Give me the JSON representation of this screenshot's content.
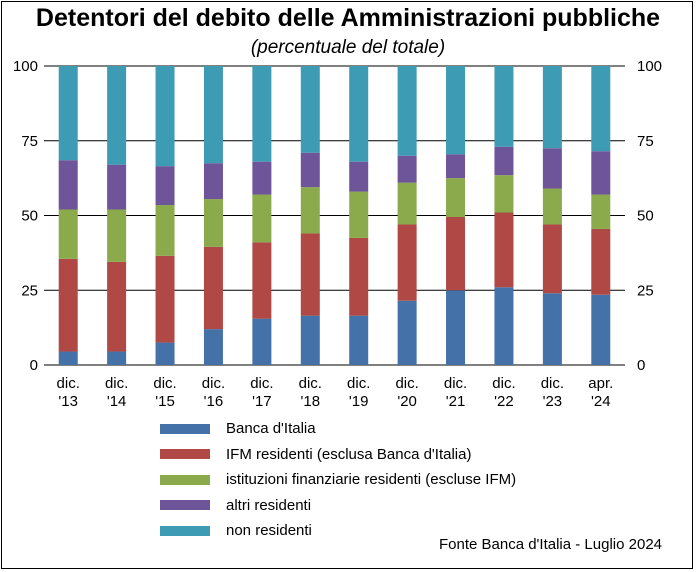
{
  "chart_data": {
    "type": "bar",
    "stacked": true,
    "title": "Detentori del debito delle Amministrazioni pubbliche",
    "subtitle": "(percentuale del totale)",
    "categories": [
      [
        "dic.",
        "'13"
      ],
      [
        "dic.",
        "'14"
      ],
      [
        "dic.",
        "'15"
      ],
      [
        "dic.",
        "'16"
      ],
      [
        "dic.",
        "'17"
      ],
      [
        "dic.",
        "'18"
      ],
      [
        "dic.",
        "'19"
      ],
      [
        "dic.",
        "'20"
      ],
      [
        "dic.",
        "'21"
      ],
      [
        "dic.",
        "'22"
      ],
      [
        "dic.",
        "'23"
      ],
      [
        "apr.",
        "'24"
      ]
    ],
    "ylim": [
      0,
      100
    ],
    "yticks": [
      0,
      25,
      50,
      75,
      100
    ],
    "grid": true,
    "series": [
      {
        "name": "Banca d'Italia",
        "color": "#4472A8",
        "values": [
          4.5,
          4.5,
          7.5,
          12,
          15.5,
          16.5,
          16.5,
          21.5,
          25,
          26,
          24,
          23.5
        ]
      },
      {
        "name": "IFM residenti (esclusa Banca d'Italia)",
        "color": "#B04845",
        "values": [
          31,
          30,
          29,
          27.5,
          25.5,
          27.5,
          26,
          25.5,
          24.5,
          25,
          23,
          22
        ]
      },
      {
        "name": "istituzioni finanziarie residenti (escluse IFM)",
        "color": "#8AAA4C",
        "values": [
          16.5,
          17.5,
          17,
          16,
          16,
          15.5,
          15.5,
          14,
          13,
          12.5,
          12,
          11.5
        ]
      },
      {
        "name": "altri residenti",
        "color": "#6E5498",
        "values": [
          16.5,
          15,
          13,
          12,
          11,
          11.5,
          10,
          9,
          8,
          9.5,
          13.5,
          14.5
        ]
      },
      {
        "name": "non residenti",
        "color": "#3E9BB4",
        "values": [
          31.5,
          33,
          33.5,
          32.5,
          32,
          29,
          32,
          30,
          29.5,
          27,
          27.5,
          28.5
        ]
      }
    ],
    "legend_position": "bottom"
  },
  "source_note": "Fonte Banca d'Italia - Luglio 2024"
}
